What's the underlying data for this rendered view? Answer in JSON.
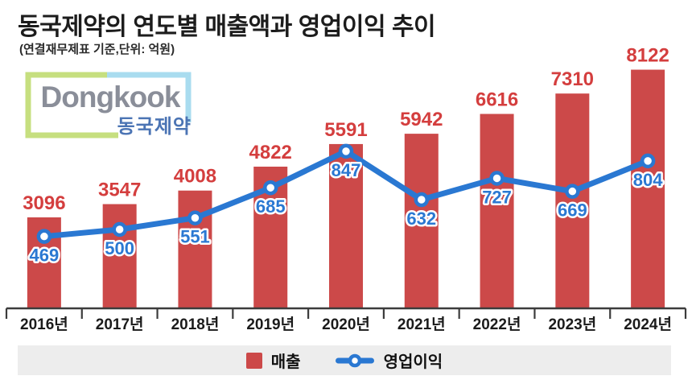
{
  "header": {
    "title": "동국제약의 연도별 매출액과 영업이익 추이",
    "subtitle": "(연결재무제표 기준,단위: 억원)"
  },
  "logo": {
    "name": "Dongkook",
    "korean": "동국제약",
    "colors": {
      "green": "#c6df7f",
      "light_blue": "#a9dcef",
      "text_gray": "#8a8e99",
      "text_blue": "#4b74b4"
    }
  },
  "chart_data": {
    "type": "bar+line",
    "title": "동국제약의 연도별 매출액과 영업이익 추이",
    "subtitle": "(연결재무제표 기준,단위: 억원)",
    "unit": "억원",
    "categories": [
      "2016년",
      "2017년",
      "2018년",
      "2019년",
      "2020년",
      "2021년",
      "2022년",
      "2023년",
      "2024년"
    ],
    "series": [
      {
        "name": "매출",
        "type": "bar",
        "color": "#cc4949",
        "label_color": "#d43e3e",
        "values": [
          3096,
          3547,
          4008,
          4822,
          5591,
          5942,
          6616,
          7310,
          8122
        ]
      },
      {
        "name": "영업이익",
        "type": "line",
        "color": "#2a78d2",
        "marker": "circle-white-fill",
        "values": [
          469,
          500,
          551,
          685,
          847,
          632,
          727,
          669,
          804
        ]
      }
    ],
    "legend_position": "bottom",
    "grid": false,
    "axis_color": "#3c3c3c",
    "legend_background": "#ededed"
  }
}
